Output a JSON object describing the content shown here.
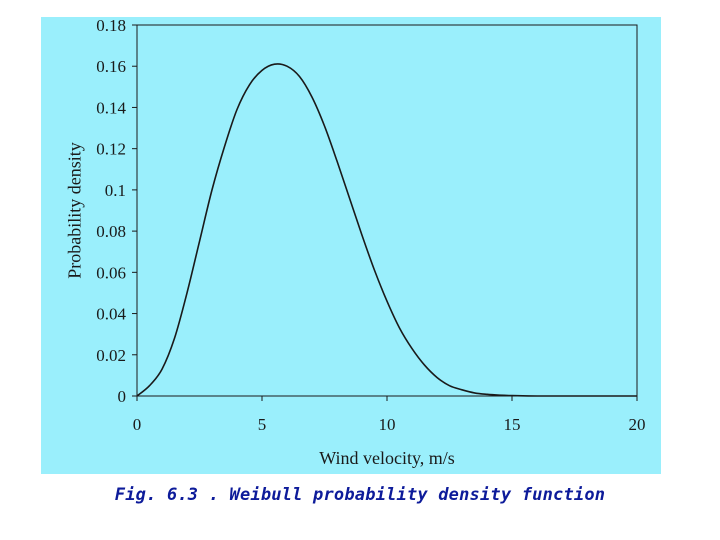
{
  "caption": "Fig. 6.3 . Weibull probability density function",
  "colors": {
    "panel_background": "#9aeffc",
    "plot_background": "#9aeffc",
    "curve": "#1a1a1a",
    "axis": "#1a1a1a",
    "caption": "#0d1b9a"
  },
  "chart_data": {
    "type": "line",
    "title": "",
    "xlabel": "Wind velocity, m/s",
    "ylabel": "Probability density",
    "xlim": [
      0,
      20
    ],
    "ylim": [
      0,
      0.18
    ],
    "xticks": [
      0,
      5,
      10,
      15,
      20
    ],
    "yticks": [
      0,
      0.02,
      0.04,
      0.06,
      0.08,
      0.1,
      0.12,
      0.14,
      0.16,
      0.18
    ],
    "xtick_labels": [
      "0",
      "5",
      "10",
      "15",
      "20"
    ],
    "ytick_labels": [
      "0",
      "0.02",
      "0.04",
      "0.06",
      "0.08",
      "0.1",
      "0.12",
      "0.14",
      "0.16",
      "0.18"
    ],
    "grid": false,
    "legend": "none",
    "series": [
      {
        "x": [
          0,
          0.5,
          1,
          1.5,
          2,
          2.5,
          3,
          3.5,
          4,
          4.5,
          5,
          5.5,
          6,
          6.5,
          7,
          7.5,
          8,
          8.5,
          9,
          9.5,
          10,
          10.5,
          11,
          11.5,
          12,
          12.5,
          13,
          13.5,
          14,
          14.5,
          15,
          16,
          17,
          18,
          19,
          20
        ],
        "y": [
          0,
          0.005,
          0.013,
          0.028,
          0.05,
          0.075,
          0.1,
          0.121,
          0.139,
          0.151,
          0.158,
          0.161,
          0.16,
          0.155,
          0.145,
          0.131,
          0.114,
          0.096,
          0.078,
          0.061,
          0.046,
          0.033,
          0.023,
          0.015,
          0.009,
          0.005,
          0.003,
          0.0015,
          0.0008,
          0.0004,
          0.0002,
          0,
          0,
          0,
          0,
          0
        ]
      }
    ]
  }
}
